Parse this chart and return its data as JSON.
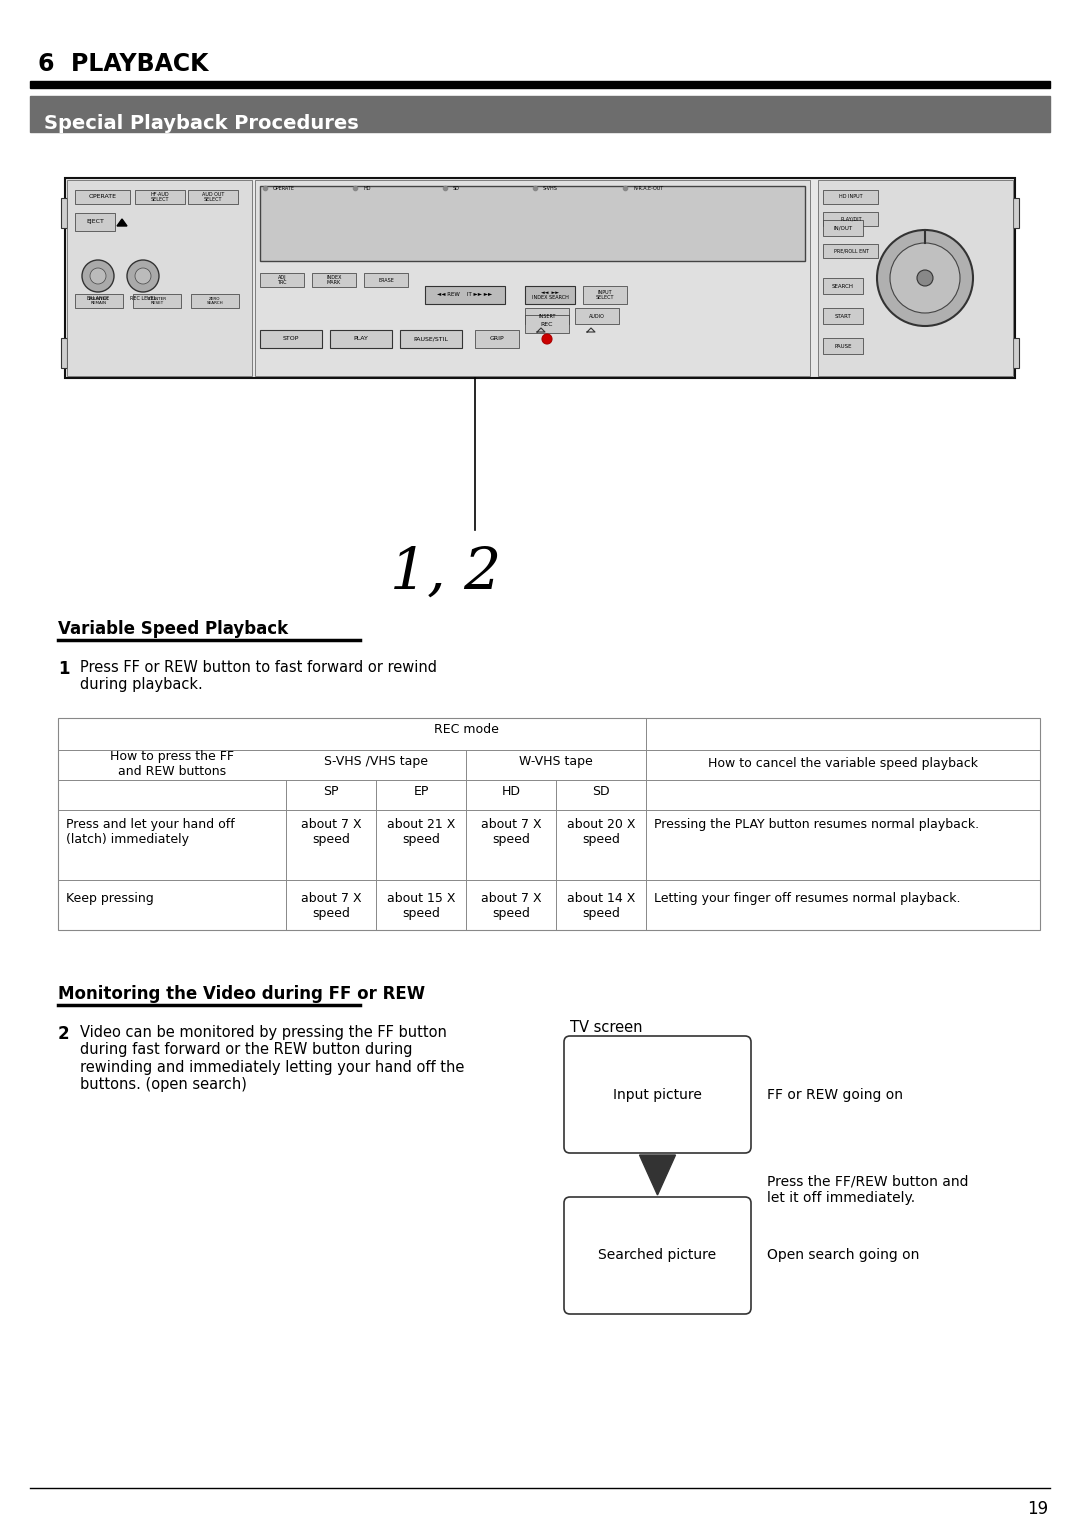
{
  "page_bg": "#ffffff",
  "chapter_title": "6  PLAYBACK",
  "section_title": "Special Playback Procedures",
  "section_title_bg": "#6d6d6d",
  "section_title_color": "#ffffff",
  "black_bar_color": "#000000",
  "label_12": "1, 2",
  "subsection1_title": "Variable Speed Playback",
  "step1_number": "1",
  "step1_text": "Press FF or REW button to fast forward or rewind\nduring playback.",
  "table_header_rec": "REC mode",
  "table_col1_header": "How to press the FF\nand REW buttons",
  "table_svhs_header": "S-VHS /VHS tape",
  "table_wvhs_header": "W-VHS tape",
  "table_cancel_header": "How to cancel the variable speed playback",
  "table_sp": "SP",
  "table_ep": "EP",
  "table_hd": "HD",
  "table_sd": "SD",
  "table_row1_label": "Press and let your hand off\n(latch) immediately",
  "table_row1_sp": "about 7 X\nspeed",
  "table_row1_ep": "about 21 X\nspeed",
  "table_row1_hd": "about 7 X\nspeed",
  "table_row1_sd": "about 20 X\nspeed",
  "table_row1_cancel": "Pressing the PLAY button resumes normal playback.",
  "table_row2_label": "Keep pressing",
  "table_row2_sp": "about 7 X\nspeed",
  "table_row2_ep": "about 15 X\nspeed",
  "table_row2_hd": "about 7 X\nspeed",
  "table_row2_sd": "about 14 X\nspeed",
  "table_row2_cancel": "Letting your finger off resumes normal playback.",
  "subsection2_title": "Monitoring the Video during FF or REW",
  "step2_number": "2",
  "step2_text": "Video can be monitored by pressing the FF button\nduring fast forward or the REW button during\nrewinding and immediately letting your hand off the\nbuttons. (open search)",
  "tv_screen_label": "TV screen",
  "box1_label": "Input picture",
  "box2_label": "Searched picture",
  "annotation1": "FF or REW going on",
  "annotation2": "Press the FF/REW button and\nlet it off immediately.",
  "annotation3": "Open search going on",
  "page_number": "19"
}
